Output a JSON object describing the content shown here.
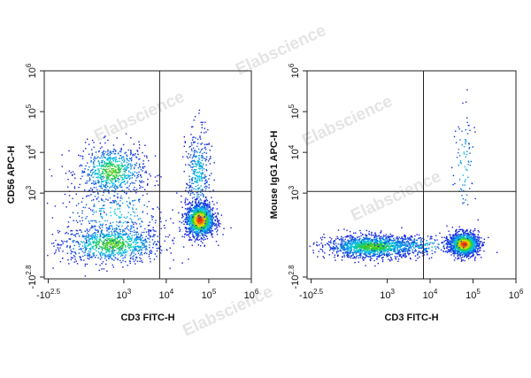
{
  "watermark": "Elabscience",
  "chart_data": [
    {
      "type": "scatter",
      "subtype": "flow-cytometry-density-dot-plot",
      "xlabel": "CD3 FITC-H",
      "ylabel": "CD56 APC-H",
      "x_ticks": [
        {
          "base": "-10",
          "exp": "2.5",
          "v": -316
        },
        {
          "base": "10",
          "exp": "3",
          "v": 1000
        },
        {
          "base": "10",
          "exp": "4",
          "v": 10000
        },
        {
          "base": "10",
          "exp": "5",
          "v": 100000
        },
        {
          "base": "10",
          "exp": "6",
          "v": 1000000
        }
      ],
      "y_ticks": [
        {
          "base": "-10",
          "exp": "2.8",
          "v": -631
        },
        {
          "base": "10",
          "exp": "3",
          "v": 1000
        },
        {
          "base": "10",
          "exp": "4",
          "v": 10000
        },
        {
          "base": "10",
          "exp": "5",
          "v": 100000
        },
        {
          "base": "10",
          "exp": "6",
          "v": 1000000
        }
      ],
      "xlim": [
        -400,
        1000000
      ],
      "ylim": [
        -700,
        1000000
      ],
      "quadrant_gate": {
        "x": 7000,
        "y": 1100
      },
      "populations": [
        {
          "x": 500,
          "y": -40,
          "sx": 0.5,
          "sy": 0.18,
          "n": 900,
          "density": "medium"
        },
        {
          "x": 500,
          "y": 3500,
          "sx": 0.32,
          "sy": 0.25,
          "n": 700,
          "density": "medium"
        },
        {
          "x": 600,
          "y": 300,
          "sx": 0.5,
          "sy": 0.4,
          "n": 300,
          "density": "low"
        },
        {
          "x": 60000,
          "y": 200,
          "sx": 0.14,
          "sy": 0.16,
          "n": 1400,
          "density": "high"
        },
        {
          "x": 55000,
          "y": 3000,
          "sx": 0.12,
          "sy": 0.45,
          "n": 350,
          "density": "low"
        }
      ]
    },
    {
      "type": "scatter",
      "subtype": "flow-cytometry-density-dot-plot",
      "xlabel": "CD3 FITC-H",
      "ylabel": "Mouse IgG1 APC-H",
      "x_ticks": [
        {
          "base": "-10",
          "exp": "2.5",
          "v": -316
        },
        {
          "base": "10",
          "exp": "3",
          "v": 1000
        },
        {
          "base": "10",
          "exp": "4",
          "v": 10000
        },
        {
          "base": "10",
          "exp": "5",
          "v": 100000
        },
        {
          "base": "10",
          "exp": "6",
          "v": 1000000
        }
      ],
      "y_ticks": [
        {
          "base": "-10",
          "exp": "2.8",
          "v": -631
        },
        {
          "base": "10",
          "exp": "3",
          "v": 1000
        },
        {
          "base": "10",
          "exp": "4",
          "v": 10000
        },
        {
          "base": "10",
          "exp": "5",
          "v": 100000
        },
        {
          "base": "10",
          "exp": "6",
          "v": 1000000
        }
      ],
      "xlim": [
        -400,
        1000000
      ],
      "ylim": [
        -700,
        1000000
      ],
      "quadrant_gate": {
        "x": 7000,
        "y": 1100
      },
      "populations": [
        {
          "x": 450,
          "y": -60,
          "sx": 0.45,
          "sy": 0.11,
          "n": 1400,
          "density": "medium"
        },
        {
          "x": 60000,
          "y": -40,
          "sx": 0.14,
          "sy": 0.11,
          "n": 1400,
          "density": "high"
        },
        {
          "x": 5000,
          "y": -50,
          "sx": 0.5,
          "sy": 0.1,
          "n": 200,
          "density": "low"
        },
        {
          "x": 60000,
          "y": 5000,
          "sx": 0.1,
          "sy": 0.6,
          "n": 80,
          "density": "low"
        }
      ]
    }
  ]
}
